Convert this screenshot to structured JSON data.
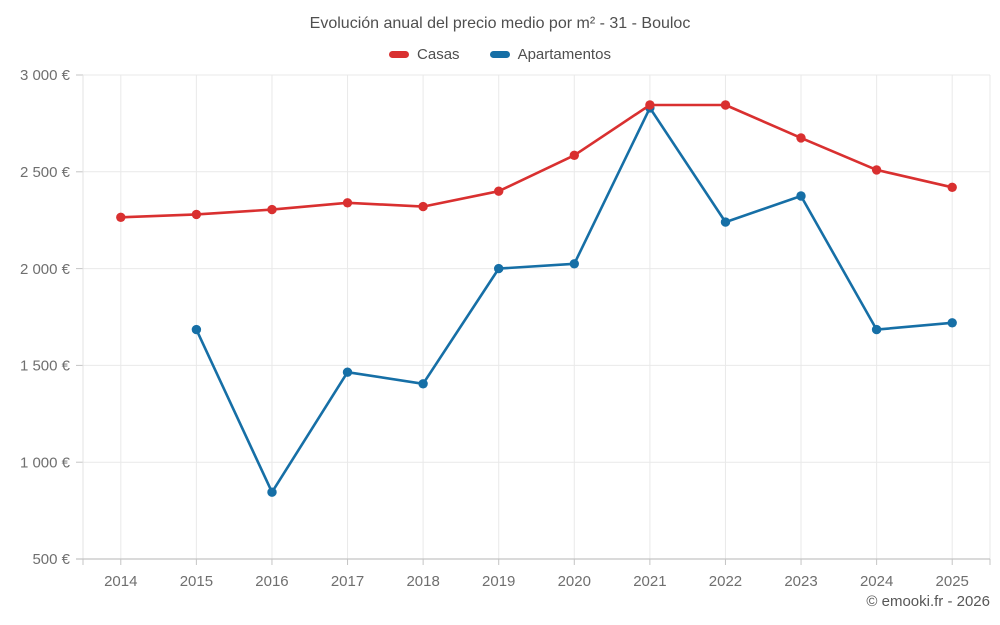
{
  "title": "Evolución anual del precio medio por m² - 31 - Bouloc",
  "footer": {
    "credit": "© emooki.fr - 2026"
  },
  "colors": {
    "grid": "#e9e9e9",
    "axis_line": "#c4c4c4",
    "y_axis_line": "#e3e3e3",
    "tick_text": "#6f6f6f",
    "title_text": "#4f4f4f"
  },
  "chart_data": {
    "type": "line",
    "title": "Evolución anual del precio medio por m² - 31 - Bouloc",
    "xlabel": "",
    "ylabel": "",
    "ylim": [
      500,
      3000
    ],
    "y_tick_step": 500,
    "grid": true,
    "legend_position": "top",
    "categories": [
      "2014",
      "2015",
      "2016",
      "2017",
      "2018",
      "2019",
      "2020",
      "2021",
      "2022",
      "2023",
      "2024",
      "2025"
    ],
    "y_ticks": [
      {
        "value": 500,
        "label": "500 €"
      },
      {
        "value": 1000,
        "label": "1 000 €"
      },
      {
        "value": 1500,
        "label": "1 500 €"
      },
      {
        "value": 2000,
        "label": "2 000 €"
      },
      {
        "value": 2500,
        "label": "2 500 €"
      },
      {
        "value": 3000,
        "label": "3 000 €"
      }
    ],
    "series": [
      {
        "name": "Casas",
        "color": "#d93030",
        "values": [
          2265,
          2280,
          2305,
          2340,
          2320,
          2400,
          2585,
          2845,
          2845,
          2675,
          2510,
          2420
        ]
      },
      {
        "name": "Apartamentos",
        "color": "#166fa6",
        "values": [
          null,
          1685,
          845,
          1465,
          1405,
          2000,
          2025,
          2830,
          2240,
          2375,
          1685,
          1720
        ]
      }
    ]
  }
}
